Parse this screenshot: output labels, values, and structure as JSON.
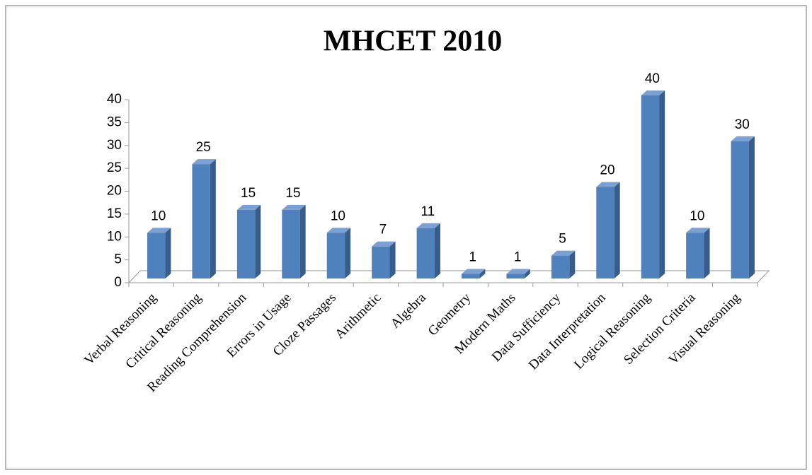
{
  "chart_data": {
    "type": "bar",
    "title": "MHCET 2010",
    "categories": [
      "Verbal Reasoning",
      "Critical Reasoning",
      "Reading Comprehension",
      "Errors in Usage",
      "Cloze Passages",
      "Arithmetic",
      "Algebra",
      "Geometry",
      "Modern Maths",
      "Data Sufficiency",
      "Data Interpretation",
      "Logical Reasoning",
      "Selection Criteria",
      "Visual Reasoning"
    ],
    "values": [
      10,
      25,
      15,
      15,
      10,
      7,
      11,
      1,
      1,
      5,
      20,
      40,
      10,
      30
    ],
    "color": "#4f81bd",
    "ylim": [
      0,
      40
    ],
    "yticks": [
      0,
      5,
      10,
      15,
      20,
      25,
      30,
      35,
      40
    ],
    "grid": false
  }
}
